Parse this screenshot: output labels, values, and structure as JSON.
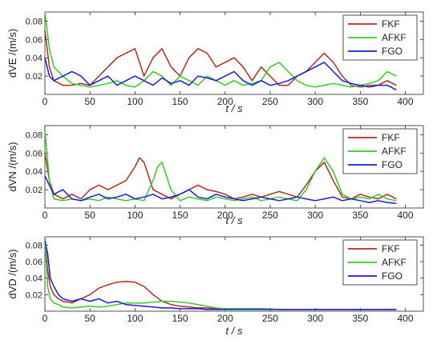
{
  "colors": {
    "FKF": "#b22a1e",
    "AFKF": "#33cc22",
    "FGO": "#1a1adb"
  },
  "chart_data": [
    {
      "type": "line",
      "xlabel": "t / s",
      "ylabel": "dVE /(m/s)",
      "xlim": [
        0,
        420
      ],
      "ylim": [
        0,
        0.09
      ],
      "xticks": [
        0,
        50,
        100,
        150,
        200,
        250,
        300,
        350,
        400
      ],
      "yticks": [
        0.02,
        0.04,
        0.06,
        0.08
      ],
      "legend": {
        "position": "top-right",
        "entries": [
          "FKF",
          "AFKF",
          "FGO"
        ]
      },
      "series": [
        {
          "name": "FKF",
          "x": [
            0,
            5,
            10,
            20,
            30,
            40,
            50,
            60,
            70,
            80,
            90,
            100,
            110,
            120,
            130,
            140,
            150,
            160,
            170,
            180,
            190,
            200,
            210,
            220,
            230,
            240,
            250,
            260,
            270,
            280,
            290,
            300,
            310,
            320,
            330,
            340,
            350,
            360,
            370,
            380,
            390
          ],
          "y": [
            0.07,
            0.03,
            0.015,
            0.01,
            0.01,
            0.012,
            0.01,
            0.02,
            0.03,
            0.04,
            0.045,
            0.05,
            0.02,
            0.04,
            0.05,
            0.03,
            0.02,
            0.04,
            0.05,
            0.045,
            0.03,
            0.035,
            0.04,
            0.03,
            0.015,
            0.03,
            0.02,
            0.01,
            0.01,
            0.02,
            0.025,
            0.035,
            0.045,
            0.035,
            0.02,
            0.01,
            0.008,
            0.01,
            0.01,
            0.015,
            0.01
          ]
        },
        {
          "name": "AFKF",
          "x": [
            0,
            5,
            10,
            20,
            30,
            40,
            50,
            60,
            70,
            80,
            90,
            100,
            110,
            120,
            130,
            140,
            150,
            160,
            170,
            180,
            190,
            200,
            210,
            220,
            230,
            240,
            250,
            260,
            270,
            280,
            290,
            300,
            310,
            320,
            330,
            340,
            350,
            360,
            370,
            380,
            390
          ],
          "y": [
            0.09,
            0.05,
            0.03,
            0.02,
            0.012,
            0.01,
            0.008,
            0.01,
            0.012,
            0.015,
            0.01,
            0.008,
            0.015,
            0.025,
            0.02,
            0.01,
            0.02,
            0.015,
            0.01,
            0.02,
            0.015,
            0.01,
            0.015,
            0.01,
            0.012,
            0.015,
            0.03,
            0.035,
            0.025,
            0.015,
            0.01,
            0.008,
            0.01,
            0.012,
            0.01,
            0.008,
            0.01,
            0.012,
            0.015,
            0.025,
            0.02
          ]
        },
        {
          "name": "FGO",
          "x": [
            0,
            5,
            10,
            20,
            30,
            40,
            50,
            60,
            70,
            80,
            90,
            100,
            110,
            120,
            130,
            140,
            150,
            160,
            170,
            180,
            190,
            200,
            210,
            220,
            230,
            240,
            250,
            260,
            270,
            280,
            290,
            300,
            310,
            320,
            330,
            340,
            350,
            360,
            370,
            380,
            390
          ],
          "y": [
            0.04,
            0.02,
            0.015,
            0.02,
            0.025,
            0.02,
            0.01,
            0.015,
            0.02,
            0.01,
            0.015,
            0.02,
            0.015,
            0.01,
            0.018,
            0.012,
            0.015,
            0.01,
            0.02,
            0.018,
            0.015,
            0.02,
            0.025,
            0.015,
            0.01,
            0.015,
            0.01,
            0.012,
            0.015,
            0.02,
            0.025,
            0.03,
            0.035,
            0.025,
            0.015,
            0.012,
            0.01,
            0.008,
            0.01,
            0.01,
            0.005
          ]
        }
      ]
    },
    {
      "type": "line",
      "xlabel": "t / s",
      "ylabel": "dVN /(m/s)",
      "xlim": [
        0,
        420
      ],
      "ylim": [
        0,
        0.09
      ],
      "xticks": [
        0,
        50,
        100,
        150,
        200,
        250,
        300,
        350,
        400
      ],
      "yticks": [
        0.02,
        0.04,
        0.06,
        0.08
      ],
      "legend": {
        "position": "top-right",
        "entries": [
          "FKF",
          "AFKF",
          "FGO"
        ]
      },
      "series": [
        {
          "name": "FKF",
          "x": [
            0,
            5,
            10,
            20,
            30,
            40,
            50,
            60,
            70,
            80,
            90,
            100,
            105,
            110,
            120,
            130,
            140,
            150,
            160,
            170,
            180,
            190,
            200,
            210,
            220,
            230,
            240,
            250,
            260,
            270,
            280,
            290,
            300,
            310,
            320,
            330,
            340,
            350,
            360,
            370,
            380,
            390
          ],
          "y": [
            0.06,
            0.03,
            0.015,
            0.01,
            0.015,
            0.01,
            0.02,
            0.025,
            0.02,
            0.025,
            0.03,
            0.045,
            0.055,
            0.05,
            0.02,
            0.015,
            0.01,
            0.015,
            0.02,
            0.025,
            0.02,
            0.018,
            0.015,
            0.01,
            0.012,
            0.015,
            0.012,
            0.015,
            0.018,
            0.015,
            0.012,
            0.025,
            0.04,
            0.05,
            0.03,
            0.012,
            0.01,
            0.015,
            0.012,
            0.01,
            0.015,
            0.01
          ]
        },
        {
          "name": "AFKF",
          "x": [
            0,
            5,
            10,
            20,
            30,
            40,
            50,
            60,
            70,
            80,
            90,
            100,
            110,
            120,
            125,
            130,
            140,
            150,
            160,
            170,
            180,
            190,
            200,
            210,
            220,
            230,
            240,
            250,
            260,
            270,
            280,
            290,
            300,
            310,
            320,
            330,
            340,
            350,
            360,
            370,
            380,
            390
          ],
          "y": [
            0.085,
            0.03,
            0.01,
            0.008,
            0.01,
            0.008,
            0.01,
            0.008,
            0.012,
            0.01,
            0.008,
            0.01,
            0.008,
            0.03,
            0.045,
            0.05,
            0.02,
            0.008,
            0.012,
            0.01,
            0.008,
            0.012,
            0.01,
            0.008,
            0.01,
            0.012,
            0.008,
            0.01,
            0.012,
            0.01,
            0.008,
            0.02,
            0.04,
            0.055,
            0.04,
            0.015,
            0.01,
            0.012,
            0.01,
            0.015,
            0.01,
            0.008
          ]
        },
        {
          "name": "FGO",
          "x": [
            0,
            5,
            10,
            20,
            30,
            40,
            50,
            60,
            70,
            80,
            90,
            100,
            110,
            120,
            130,
            140,
            150,
            160,
            170,
            180,
            190,
            200,
            210,
            220,
            230,
            240,
            250,
            260,
            270,
            280,
            290,
            300,
            310,
            320,
            330,
            340,
            350,
            360,
            370,
            380,
            390
          ],
          "y": [
            0.035,
            0.025,
            0.015,
            0.02,
            0.01,
            0.008,
            0.012,
            0.015,
            0.01,
            0.012,
            0.015,
            0.01,
            0.012,
            0.015,
            0.01,
            0.012,
            0.015,
            0.02,
            0.012,
            0.01,
            0.015,
            0.012,
            0.01,
            0.008,
            0.01,
            0.012,
            0.01,
            0.008,
            0.01,
            0.012,
            0.01,
            0.008,
            0.01,
            0.012,
            0.008,
            0.01,
            0.008,
            0.006,
            0.008,
            0.006,
            0.005
          ]
        }
      ]
    },
    {
      "type": "line",
      "xlabel": "t / s",
      "ylabel": "dVD /(m/s)",
      "xlim": [
        0,
        420
      ],
      "ylim": [
        0,
        0.09
      ],
      "xticks": [
        0,
        50,
        100,
        150,
        200,
        250,
        300,
        350,
        400
      ],
      "yticks": [
        0.02,
        0.04,
        0.06,
        0.08
      ],
      "legend": {
        "position": "top-right",
        "entries": [
          "FKF",
          "AFKF",
          "FGO"
        ]
      },
      "series": [
        {
          "name": "FKF",
          "x": [
            0,
            3,
            6,
            10,
            15,
            20,
            30,
            40,
            50,
            60,
            70,
            80,
            90,
            100,
            110,
            120,
            130,
            140,
            150,
            160,
            170,
            180,
            190,
            200,
            220,
            240,
            260,
            280,
            300,
            320,
            340,
            360,
            380,
            390
          ],
          "y": [
            0.088,
            0.05,
            0.03,
            0.02,
            0.015,
            0.012,
            0.01,
            0.015,
            0.02,
            0.028,
            0.032,
            0.035,
            0.036,
            0.035,
            0.03,
            0.02,
            0.012,
            0.008,
            0.006,
            0.005,
            0.004,
            0.004,
            0.003,
            0.003,
            0.003,
            0.003,
            0.002,
            0.002,
            0.002,
            0.002,
            0.002,
            0.002,
            0.002,
            0.002
          ]
        },
        {
          "name": "AFKF",
          "x": [
            0,
            3,
            6,
            10,
            15,
            20,
            30,
            40,
            50,
            60,
            70,
            80,
            90,
            100,
            110,
            120,
            130,
            140,
            150,
            160,
            170,
            180,
            190,
            200,
            220,
            240,
            260,
            280,
            300,
            320,
            340,
            360,
            380,
            390
          ],
          "y": [
            0.09,
            0.03,
            0.015,
            0.01,
            0.008,
            0.005,
            0.004,
            0.005,
            0.006,
            0.005,
            0.006,
            0.008,
            0.01,
            0.01,
            0.01,
            0.011,
            0.012,
            0.012,
            0.011,
            0.01,
            0.008,
            0.006,
            0.004,
            0.003,
            0.003,
            0.003,
            0.002,
            0.002,
            0.002,
            0.002,
            0.002,
            0.002,
            0.002,
            0.002
          ]
        },
        {
          "name": "FGO",
          "x": [
            0,
            3,
            6,
            10,
            15,
            20,
            30,
            40,
            50,
            60,
            70,
            80,
            90,
            100,
            110,
            120,
            130,
            140,
            150,
            160,
            170,
            180,
            190,
            200,
            220,
            240,
            260,
            280,
            300,
            320,
            340,
            360,
            380,
            390
          ],
          "y": [
            0.085,
            0.07,
            0.04,
            0.03,
            0.02,
            0.015,
            0.012,
            0.015,
            0.012,
            0.015,
            0.01,
            0.012,
            0.008,
            0.007,
            0.006,
            0.005,
            0.004,
            0.004,
            0.003,
            0.003,
            0.003,
            0.002,
            0.002,
            0.002,
            0.002,
            0.002,
            0.002,
            0.002,
            0.002,
            0.002,
            0.002,
            0.002,
            0.002,
            0.002
          ]
        }
      ]
    }
  ]
}
